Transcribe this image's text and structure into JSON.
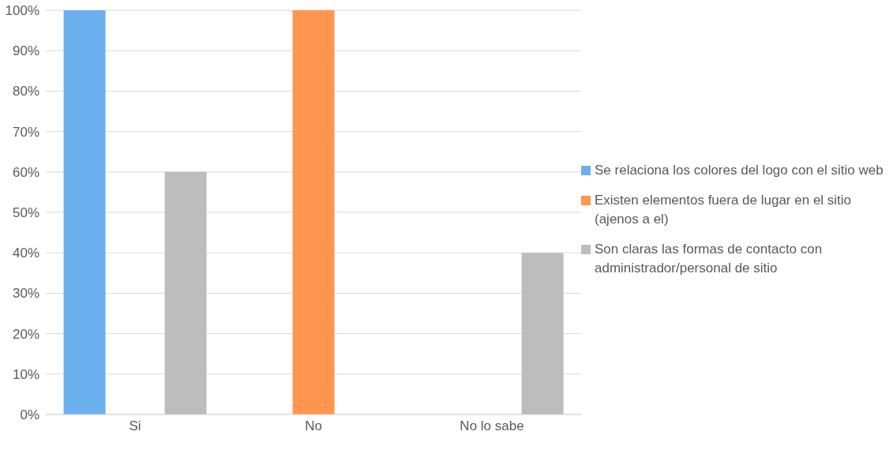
{
  "chart_data": {
    "type": "bar",
    "categories": [
      "Si",
      "No",
      "No lo sabe"
    ],
    "series": [
      {
        "name": "Se relaciona los colores del logo con el sitio web",
        "color": "#6ab0ef",
        "values": [
          100,
          0,
          0
        ]
      },
      {
        "name": "Existen elementos fuera de lugar en el sitio (ajenos a el)",
        "color": "#ff9650",
        "values": [
          0,
          100,
          0
        ]
      },
      {
        "name": "Son claras las formas de contacto con administrador/personal de sitio",
        "color": "#bdbdbd",
        "values": [
          60,
          0,
          40
        ]
      }
    ],
    "ylim": [
      0,
      100
    ],
    "yticks": [
      {
        "value": 0,
        "label": "0%"
      },
      {
        "value": 10,
        "label": "10%"
      },
      {
        "value": 20,
        "label": "20%"
      },
      {
        "value": 30,
        "label": "30%"
      },
      {
        "value": 40,
        "label": "40%"
      },
      {
        "value": 50,
        "label": "50%"
      },
      {
        "value": 60,
        "label": "60%"
      },
      {
        "value": 70,
        "label": "70%"
      },
      {
        "value": 80,
        "label": "80%"
      },
      {
        "value": 90,
        "label": "90%"
      },
      {
        "value": 100,
        "label": "100%"
      }
    ],
    "grid": "y",
    "legend": "right"
  }
}
